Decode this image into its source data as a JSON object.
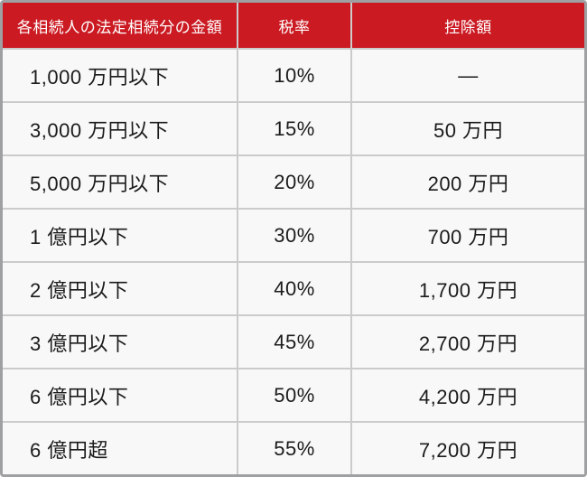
{
  "table": {
    "headers": [
      "各相続人の法定相続分の金額",
      "税率",
      "控除額"
    ],
    "rows": [
      [
        "1,000 万円以下",
        "10%",
        "—"
      ],
      [
        "3,000 万円以下",
        "15%",
        "50 万円"
      ],
      [
        "5,000 万円以下",
        "20%",
        "200 万円"
      ],
      [
        "1 億円以下",
        "30%",
        "700 万円"
      ],
      [
        "2 億円以下",
        "40%",
        "1,700 万円"
      ],
      [
        "3 億円以下",
        "45%",
        "2,700 万円"
      ],
      [
        "6 億円以下",
        "50%",
        "4,200 万円"
      ],
      [
        "6 億円超",
        "55%",
        "7,200 万円"
      ]
    ]
  },
  "colors": {
    "header_bg": "#CB1A22",
    "header_text": "#FFFFFF",
    "cell_bg": "#F8F8F8",
    "cell_text": "#1B1B1B",
    "grid_line": "#CBCBCB",
    "outer_border": "#9EA0A2"
  },
  "chart_data": {
    "type": "table",
    "columns": [
      "各相続人の法定相続分の金額",
      "税率",
      "控除額"
    ],
    "rows": [
      [
        "1,000 万円以下",
        "10%",
        "—"
      ],
      [
        "3,000 万円以下",
        "15%",
        "50 万円"
      ],
      [
        "5,000 万円以下",
        "20%",
        "200 万円"
      ],
      [
        "1 億円以下",
        "30%",
        "700 万円"
      ],
      [
        "2 億円以下",
        "40%",
        "1,700 万円"
      ],
      [
        "3 億円以下",
        "45%",
        "2,700 万円"
      ],
      [
        "6 億円以下",
        "50%",
        "4,200 万円"
      ],
      [
        "6 億円超",
        "55%",
        "7,200 万円"
      ]
    ],
    "tax_rates_percent": [
      10,
      15,
      20,
      30,
      40,
      45,
      50,
      55
    ],
    "deductions_man_yen": [
      null,
      50,
      200,
      700,
      1700,
      2700,
      4200,
      7200
    ],
    "legend_position": "none",
    "grid": true
  }
}
